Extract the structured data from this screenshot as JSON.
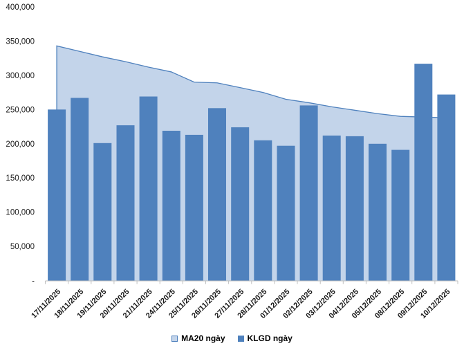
{
  "chart_data": {
    "type": "combo",
    "title": "",
    "categories": [
      "17/11/2025",
      "18/11/2025",
      "19/11/2025",
      "20/11/2025",
      "21/11/2025",
      "24/11/2025",
      "25/11/2025",
      "26/11/2025",
      "27/11/2025",
      "28/11/2025",
      "01/12/2025",
      "02/12/2025",
      "03/12/2025",
      "04/12/2025",
      "05/12/2025",
      "08/12/2025",
      "09/12/2025",
      "10/12/2025"
    ],
    "series": [
      {
        "name": "MA20 ngày",
        "type": "area",
        "fill_color": "#C3D4EA",
        "line_color": "#4F81BD",
        "values": [
          343000,
          335000,
          327000,
          320000,
          312000,
          305000,
          290000,
          289000,
          282000,
          275000,
          265000,
          260000,
          254000,
          249000,
          244000,
          240000,
          239000,
          238000
        ]
      },
      {
        "name": "KLGD ngày",
        "type": "bar",
        "fill_color": "#4F81BD",
        "values": [
          250000,
          267000,
          201000,
          227000,
          269000,
          219000,
          213000,
          252000,
          224000,
          205000,
          197000,
          256000,
          212000,
          211000,
          200000,
          191000,
          317000,
          272000
        ]
      }
    ],
    "ylim": [
      0,
      400000
    ],
    "ytick_step": 50000,
    "yticks": [
      {
        "value": 400000,
        "label": "400,000"
      },
      {
        "value": 350000,
        "label": "350,000"
      },
      {
        "value": 300000,
        "label": "300,000"
      },
      {
        "value": 250000,
        "label": "250,000"
      },
      {
        "value": 200000,
        "label": "200,000"
      },
      {
        "value": 150000,
        "label": "150,000"
      },
      {
        "value": 100000,
        "label": "100,000"
      },
      {
        "value": 50000,
        "label": "50,000"
      },
      {
        "value": 0,
        "label": "-"
      }
    ],
    "xlabel": "",
    "ylabel": "",
    "grid": false,
    "legend_position": "bottom",
    "axis_color": "#BFBFBF",
    "text_color": "#1a1a1a"
  }
}
